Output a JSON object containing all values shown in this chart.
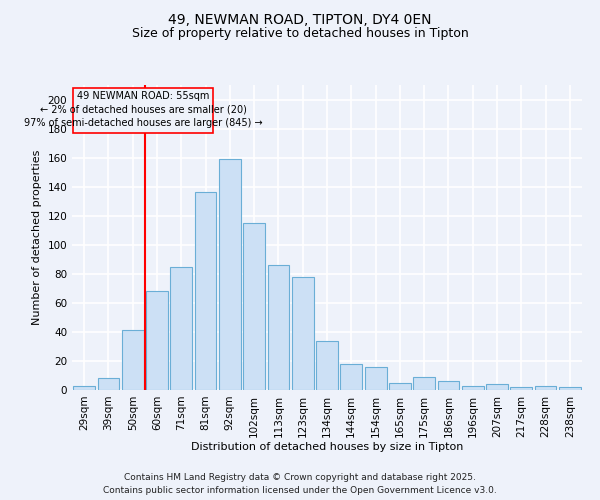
{
  "title1": "49, NEWMAN ROAD, TIPTON, DY4 0EN",
  "title2": "Size of property relative to detached houses in Tipton",
  "xlabel": "Distribution of detached houses by size in Tipton",
  "ylabel": "Number of detached properties",
  "categories": [
    "29sqm",
    "39sqm",
    "50sqm",
    "60sqm",
    "71sqm",
    "81sqm",
    "92sqm",
    "102sqm",
    "113sqm",
    "123sqm",
    "134sqm",
    "144sqm",
    "154sqm",
    "165sqm",
    "175sqm",
    "186sqm",
    "196sqm",
    "207sqm",
    "217sqm",
    "228sqm",
    "238sqm"
  ],
  "values": [
    3,
    8,
    41,
    68,
    85,
    136,
    159,
    115,
    86,
    78,
    34,
    18,
    16,
    5,
    9,
    6,
    3,
    4,
    2,
    3,
    2
  ],
  "bar_color": "#cce0f5",
  "bar_edge_color": "#6aaed6",
  "ann_line1": "49 NEWMAN ROAD: 55sqm",
  "ann_line2": "← 2% of detached houses are smaller (20)",
  "ann_line3": "97% of semi-detached houses are larger (845) →",
  "redline_x": 2.5,
  "ylim": [
    0,
    210
  ],
  "yticks": [
    0,
    20,
    40,
    60,
    80,
    100,
    120,
    140,
    160,
    180,
    200
  ],
  "footer1": "Contains HM Land Registry data © Crown copyright and database right 2025.",
  "footer2": "Contains public sector information licensed under the Open Government Licence v3.0.",
  "background_color": "#eef2fa",
  "grid_color": "#ffffff",
  "title1_fontsize": 10,
  "title2_fontsize": 9,
  "axis_fontsize": 8,
  "tick_fontsize": 7.5,
  "footer_fontsize": 6.5,
  "ann_fontsize": 7
}
